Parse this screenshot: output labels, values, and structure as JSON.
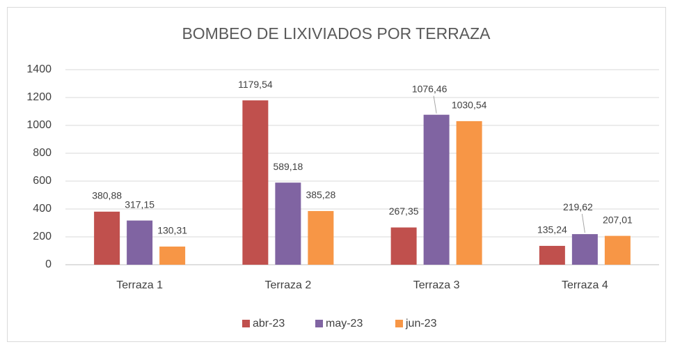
{
  "chart_data": {
    "type": "bar",
    "title": "BOMBEO DE LIXIVIADOS POR TERRAZA",
    "categories": [
      "Terraza 1",
      "Terraza 2",
      "Terraza 3",
      "Terraza 4"
    ],
    "series": [
      {
        "name": "abr-23",
        "color": "#c0504d",
        "values": [
          380.88,
          1179.54,
          267.35,
          135.24
        ],
        "value_labels": [
          "380,88",
          "1179,54",
          "267,35",
          "135,24"
        ]
      },
      {
        "name": "may-23",
        "color": "#8064a2",
        "values": [
          317.15,
          589.18,
          1076.46,
          219.62
        ],
        "value_labels": [
          "317,15",
          "589,18",
          "1076,46",
          "219,62"
        ]
      },
      {
        "name": "jun-23",
        "color": "#f79646",
        "values": [
          130.31,
          385.28,
          1030.54,
          207.01
        ],
        "value_labels": [
          "130,31",
          "385,28",
          "1030,54",
          "207,01"
        ]
      }
    ],
    "ylim": [
      0,
      1400
    ],
    "yticks": [
      0,
      200,
      400,
      600,
      800,
      1000,
      1200,
      1400
    ],
    "grid": true,
    "legend": "bottom"
  }
}
